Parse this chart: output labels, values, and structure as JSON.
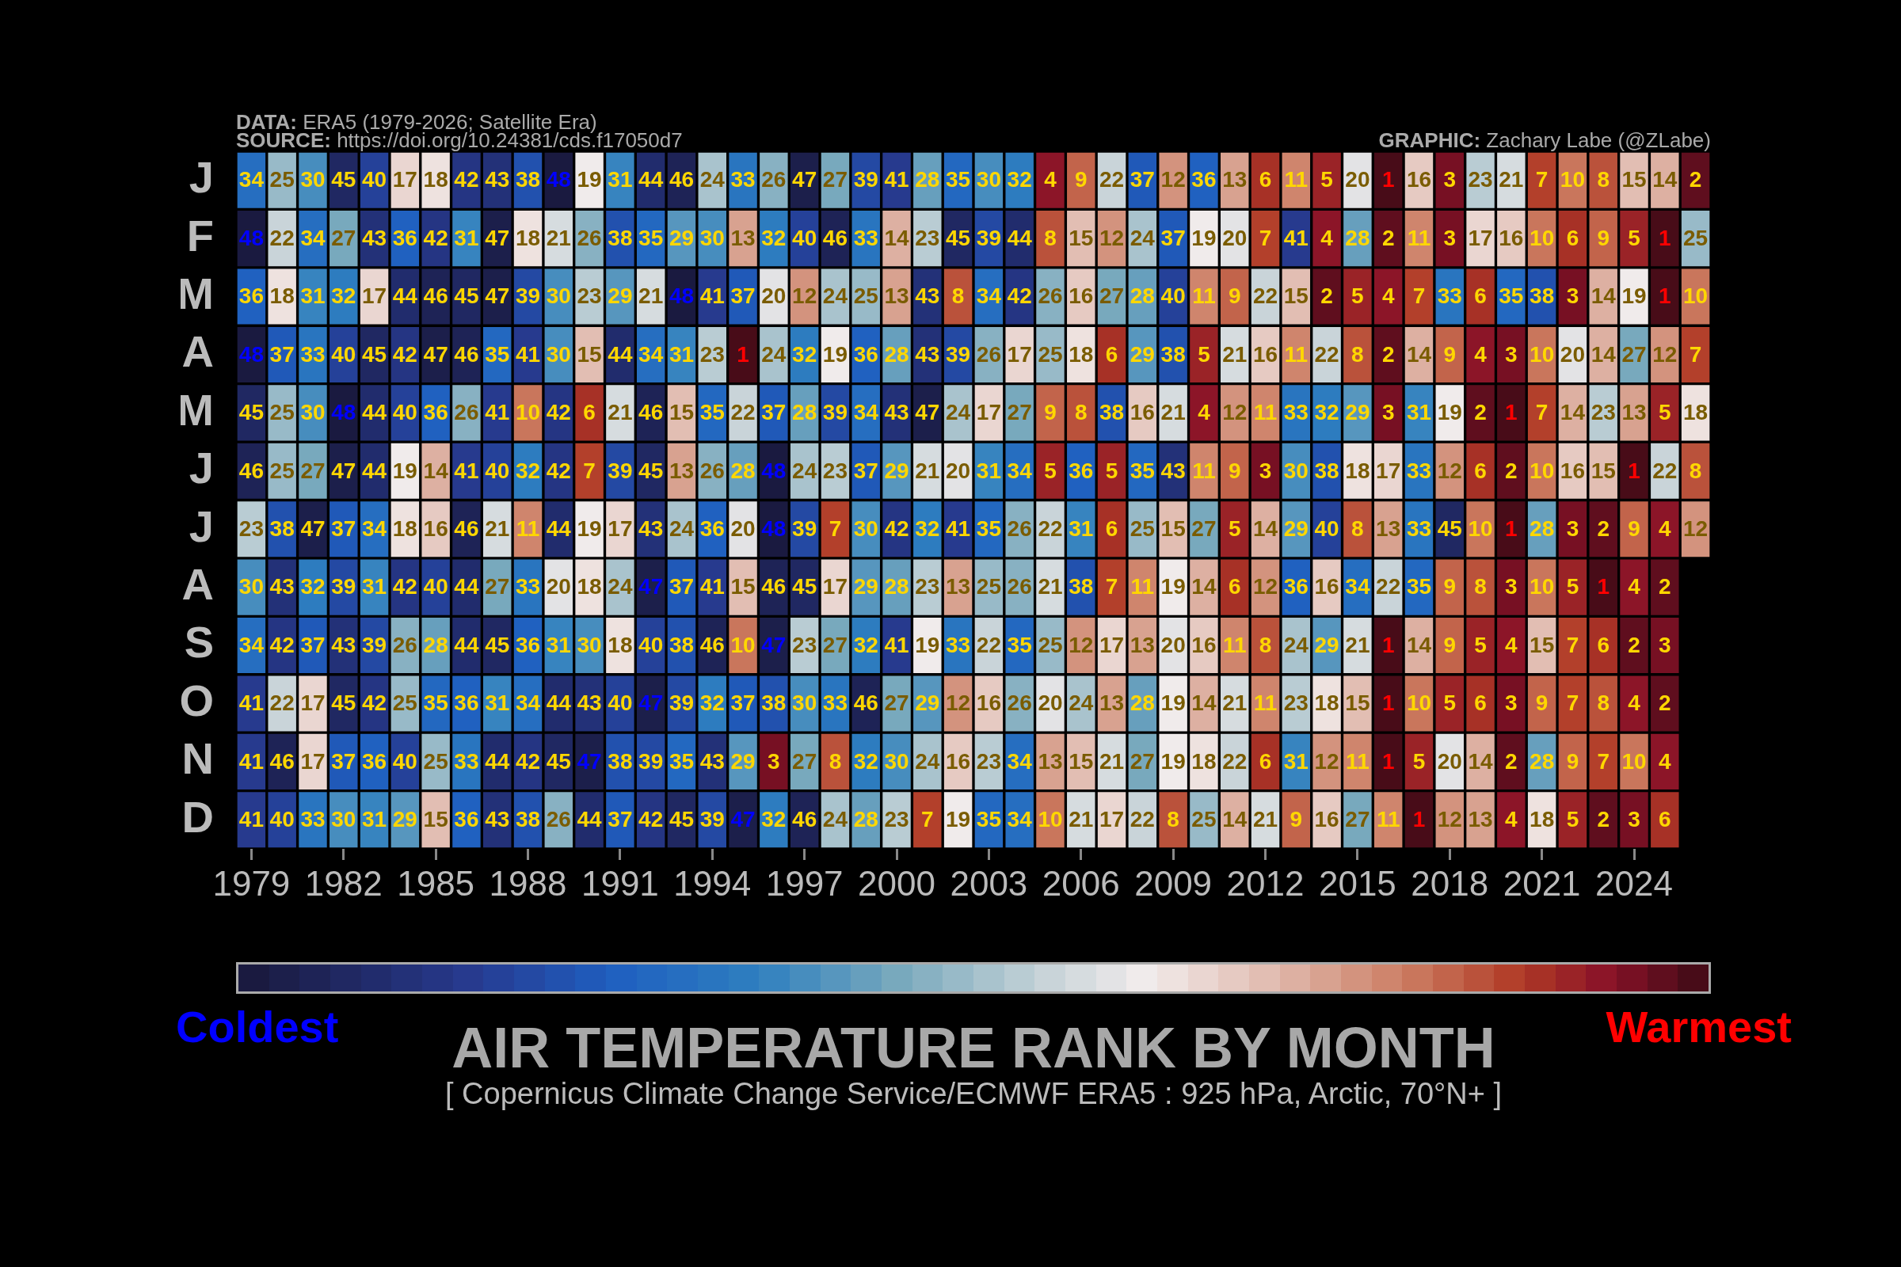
{
  "chart_data": {
    "type": "heatmap",
    "title": "AIR TEMPERATURE RANK BY MONTH",
    "subtitle": "[ Copernicus Climate Change Service/ECMWF ERA5 : 925 hPa, Arctic, 70°N+ ]",
    "annotations": [
      "DATA: ERA5 (1979-2026; Satellite Era)",
      "SOURCE: https://doi.org/10.24381/cds.f17050d7",
      "GRAPHIC: Zachary Labe (@ZLabe)",
      "Coldest",
      "Warmest"
    ],
    "categories": [
      "1979",
      null,
      null,
      "1982",
      null,
      null,
      "1985",
      null,
      null,
      "1988",
      null,
      null,
      "1991",
      null,
      null,
      "1994",
      null,
      null,
      "1997",
      null,
      null,
      "2000",
      null,
      null,
      "2003",
      null,
      null,
      "2006",
      null,
      null,
      "2009",
      null,
      null,
      "2012",
      null,
      null,
      "2015",
      null,
      null,
      "2018",
      null,
      null,
      "2021",
      null,
      null,
      "2024",
      null,
      null
    ],
    "y_categories": [
      "J",
      "F",
      "M",
      "A",
      "M",
      "J",
      "J",
      "A",
      "S",
      "O",
      "N",
      "D"
    ],
    "cells": [
      [
        34,
        25,
        30,
        45,
        40,
        17,
        18,
        42,
        43,
        38,
        48,
        19,
        31,
        44,
        46,
        24,
        33,
        26,
        47,
        27,
        39,
        41,
        28,
        35,
        30,
        32,
        4,
        9,
        22,
        37,
        12,
        36,
        13,
        6,
        11,
        5,
        20,
        1,
        16,
        3,
        23,
        21,
        7,
        10,
        8,
        15,
        14,
        2
      ],
      [
        48,
        22,
        34,
        27,
        43,
        36,
        42,
        31,
        47,
        18,
        21,
        26,
        38,
        35,
        29,
        30,
        13,
        32,
        40,
        46,
        33,
        14,
        23,
        45,
        39,
        44,
        8,
        15,
        12,
        24,
        37,
        19,
        20,
        7,
        41,
        4,
        28,
        2,
        11,
        3,
        17,
        16,
        10,
        6,
        9,
        5,
        1,
        25
      ],
      [
        36,
        18,
        31,
        32,
        17,
        44,
        46,
        45,
        47,
        39,
        30,
        23,
        29,
        21,
        48,
        41,
        37,
        20,
        12,
        24,
        25,
        13,
        43,
        8,
        34,
        42,
        26,
        16,
        27,
        28,
        40,
        11,
        9,
        22,
        15,
        2,
        5,
        4,
        7,
        33,
        6,
        35,
        38,
        3,
        14,
        19,
        1,
        10
      ],
      [
        48,
        37,
        33,
        40,
        45,
        42,
        47,
        46,
        35,
        41,
        30,
        15,
        44,
        34,
        31,
        23,
        1,
        24,
        32,
        19,
        36,
        28,
        43,
        39,
        26,
        17,
        25,
        18,
        6,
        29,
        38,
        5,
        21,
        16,
        11,
        22,
        8,
        2,
        14,
        9,
        4,
        3,
        10,
        20,
        14,
        27,
        12,
        7
      ],
      [
        45,
        25,
        30,
        48,
        44,
        40,
        36,
        26,
        41,
        10,
        42,
        6,
        21,
        46,
        15,
        35,
        22,
        37,
        28,
        39,
        34,
        43,
        47,
        24,
        17,
        27,
        9,
        8,
        38,
        16,
        21,
        4,
        12,
        11,
        33,
        32,
        29,
        3,
        31,
        19,
        2,
        1,
        7,
        14,
        23,
        13,
        5,
        18
      ],
      [
        46,
        25,
        27,
        47,
        44,
        19,
        14,
        41,
        40,
        32,
        42,
        7,
        39,
        45,
        13,
        26,
        28,
        48,
        24,
        23,
        37,
        29,
        21,
        20,
        31,
        34,
        5,
        36,
        5,
        35,
        43,
        11,
        9,
        3,
        30,
        38,
        18,
        17,
        33,
        12,
        6,
        2,
        10,
        16,
        15,
        1,
        22,
        8
      ],
      [
        23,
        38,
        47,
        37,
        34,
        18,
        16,
        46,
        21,
        11,
        44,
        19,
        17,
        43,
        24,
        36,
        20,
        48,
        39,
        7,
        30,
        42,
        32,
        41,
        35,
        26,
        22,
        31,
        6,
        25,
        15,
        27,
        5,
        14,
        29,
        40,
        8,
        13,
        33,
        45,
        10,
        1,
        28,
        3,
        2,
        9,
        4,
        12
      ],
      [
        30,
        43,
        32,
        39,
        31,
        42,
        40,
        44,
        27,
        33,
        20,
        18,
        24,
        47,
        37,
        41,
        15,
        46,
        45,
        17,
        29,
        28,
        23,
        13,
        25,
        26,
        21,
        38,
        7,
        11,
        19,
        14,
        6,
        12,
        36,
        16,
        34,
        22,
        35,
        9,
        8,
        3,
        10,
        5,
        1,
        4,
        2,
        null
      ],
      [
        34,
        42,
        37,
        43,
        39,
        26,
        28,
        44,
        45,
        36,
        31,
        30,
        18,
        40,
        38,
        46,
        10,
        47,
        23,
        27,
        32,
        41,
        19,
        33,
        22,
        35,
        25,
        12,
        17,
        13,
        20,
        16,
        11,
        8,
        24,
        29,
        21,
        1,
        14,
        9,
        5,
        4,
        15,
        7,
        6,
        2,
        3,
        null
      ],
      [
        41,
        22,
        17,
        45,
        42,
        25,
        35,
        36,
        31,
        34,
        44,
        43,
        40,
        47,
        39,
        32,
        37,
        38,
        30,
        33,
        46,
        27,
        29,
        12,
        16,
        26,
        20,
        24,
        13,
        28,
        19,
        14,
        21,
        11,
        23,
        18,
        15,
        1,
        10,
        5,
        6,
        3,
        9,
        7,
        8,
        4,
        2,
        null
      ],
      [
        41,
        46,
        17,
        37,
        36,
        40,
        25,
        33,
        44,
        42,
        45,
        47,
        38,
        39,
        35,
        43,
        29,
        3,
        27,
        8,
        32,
        30,
        24,
        16,
        23,
        34,
        13,
        15,
        21,
        27,
        19,
        18,
        22,
        6,
        31,
        12,
        11,
        1,
        5,
        20,
        14,
        2,
        28,
        9,
        7,
        10,
        4,
        null
      ],
      [
        41,
        40,
        33,
        30,
        31,
        29,
        15,
        36,
        43,
        38,
        26,
        44,
        37,
        42,
        45,
        39,
        47,
        32,
        46,
        24,
        28,
        23,
        7,
        19,
        35,
        34,
        10,
        21,
        17,
        22,
        8,
        25,
        14,
        21,
        9,
        16,
        27,
        11,
        1,
        12,
        13,
        4,
        18,
        5,
        2,
        3,
        6,
        null
      ]
    ],
    "data_labels": true,
    "legend": false
  }
}
